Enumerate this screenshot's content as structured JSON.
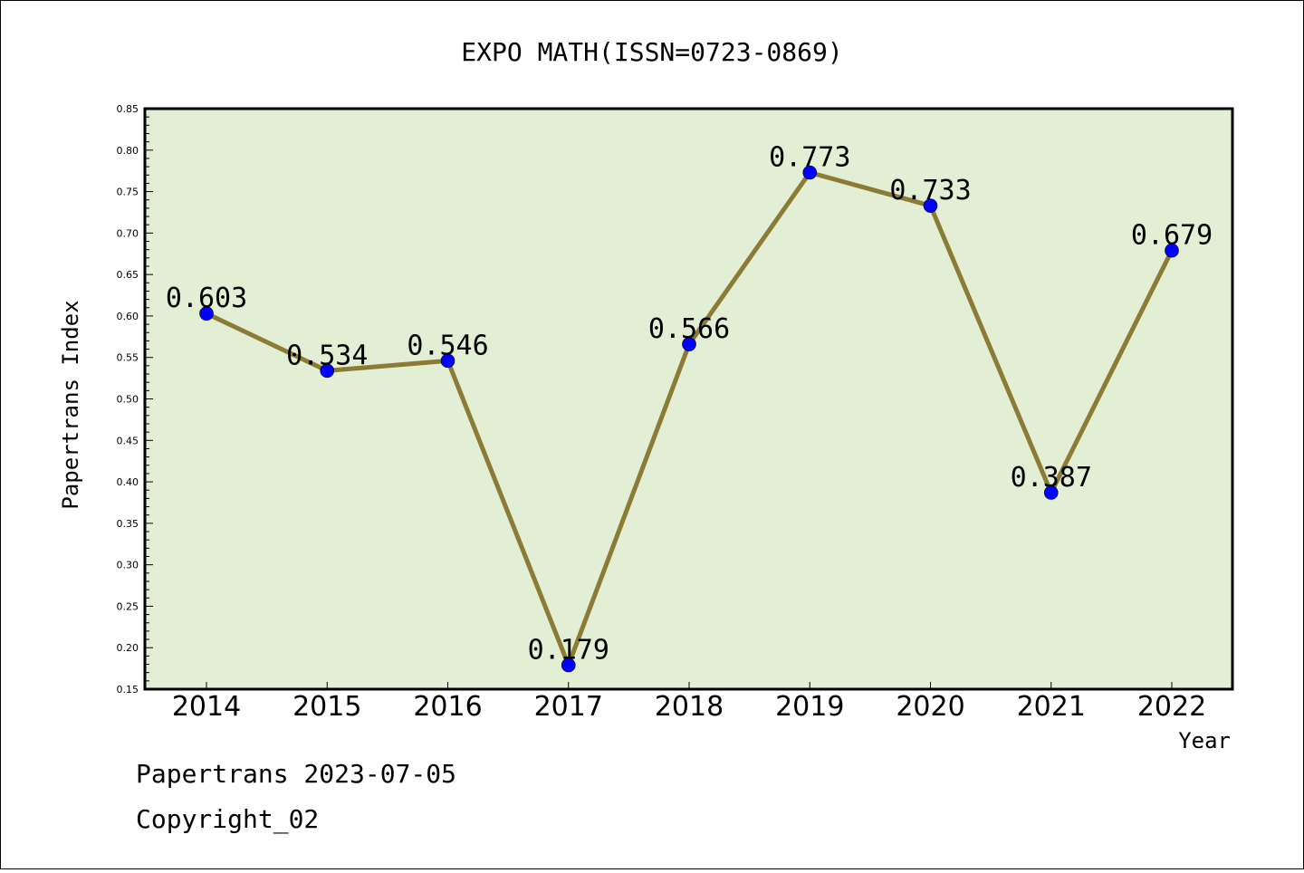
{
  "footer": {
    "generated": "Papertrans 2023-07-05",
    "copyright": "Copyright_02"
  },
  "colors": {
    "plot_background": "#e2efd4",
    "line": "#8b7b35",
    "marker": "#0000ff",
    "axis": "#000000"
  },
  "chart_data": {
    "type": "line",
    "title": "EXPO MATH(ISSN=0723-0869)",
    "xlabel": "Year",
    "ylabel": "Papertrans Index",
    "categories": [
      "2014",
      "2015",
      "2016",
      "2017",
      "2018",
      "2019",
      "2020",
      "2021",
      "2022"
    ],
    "series": [
      {
        "values": [
          0.603,
          0.534,
          0.546,
          0.179,
          0.566,
          0.773,
          0.733,
          0.387,
          0.679
        ]
      }
    ],
    "data_labels": [
      "0.603",
      "0.534",
      "0.546",
      "0.179",
      "0.566",
      "0.773",
      "0.733",
      "0.387",
      "0.679"
    ],
    "ylim": [
      0.15,
      0.85
    ],
    "yticks": [
      "0.15",
      "0.20",
      "0.25",
      "0.30",
      "0.35",
      "0.40",
      "0.45",
      "0.50",
      "0.55",
      "0.60",
      "0.65",
      "0.70",
      "0.75",
      "0.80",
      "0.85"
    ],
    "grid": false,
    "legend": "none"
  }
}
